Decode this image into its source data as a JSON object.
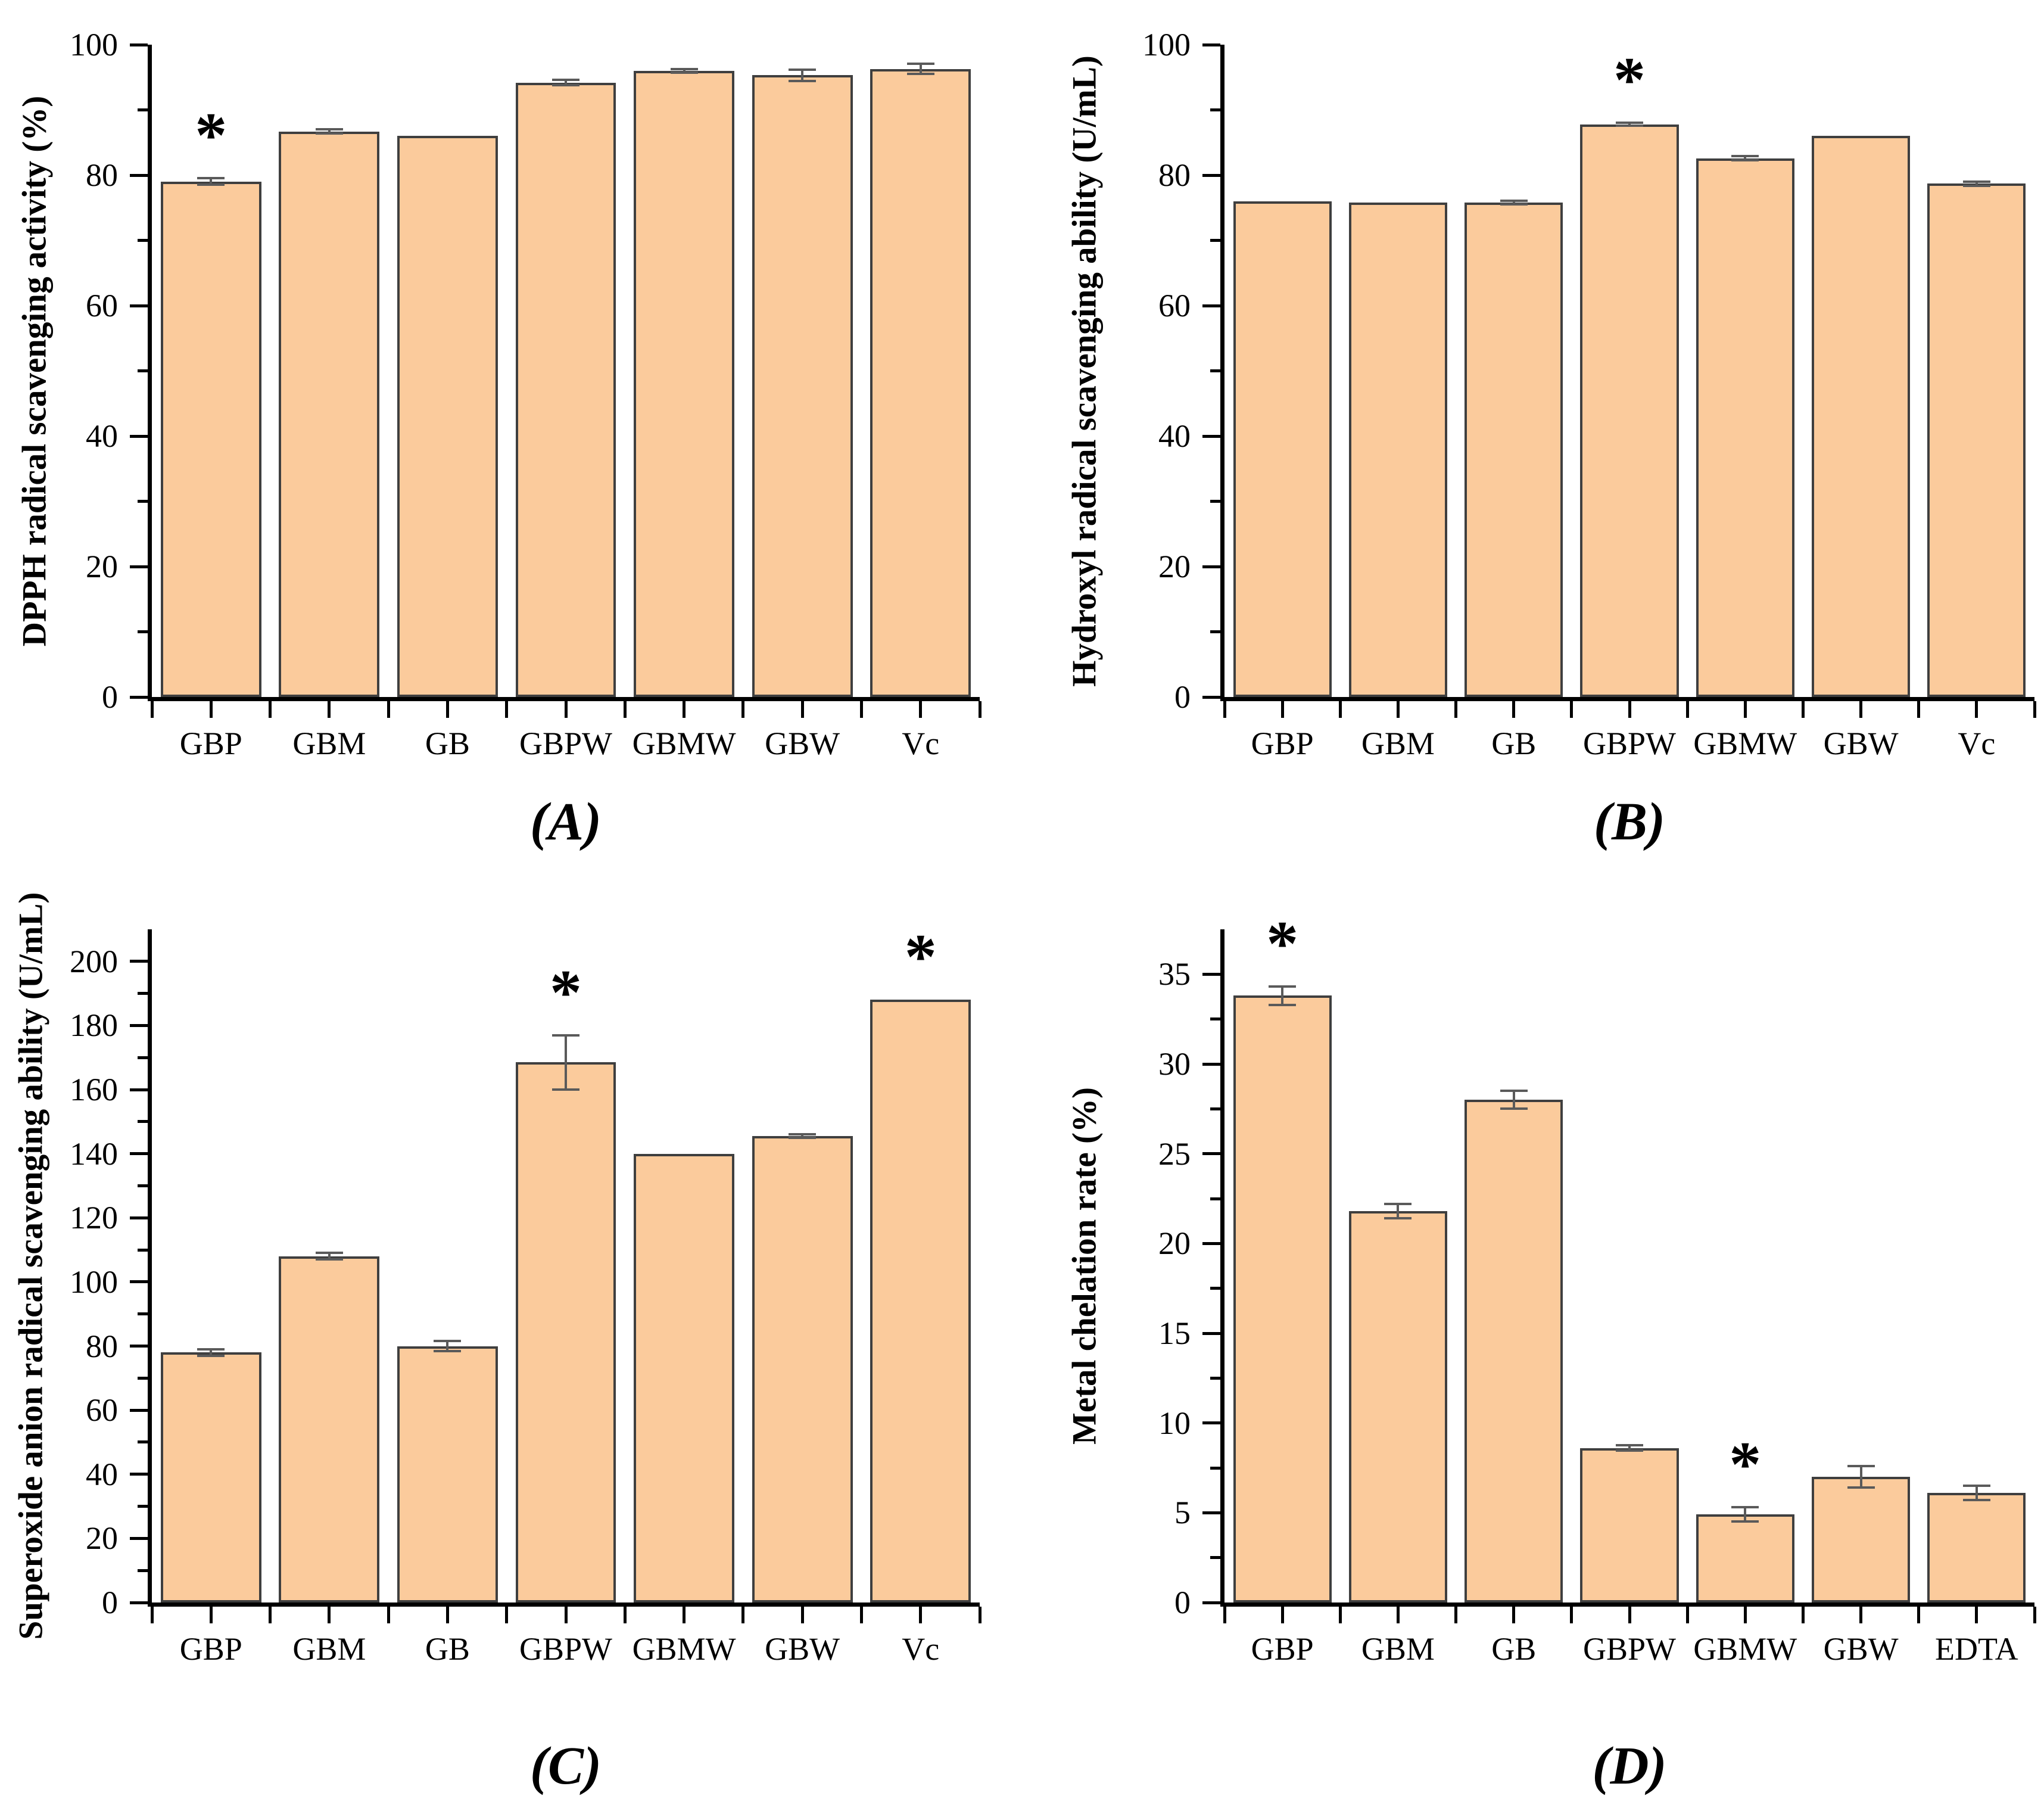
{
  "figure": {
    "description": "Four-panel bar chart figure of antioxidant activities",
    "background": "#FFFFFF"
  },
  "style": {
    "bar_fill": "#FBCB9C",
    "bar_border": "#3F3F3F",
    "error_color": "#5A5A5A",
    "axis_color": "#000000",
    "text_color": "#000000",
    "sig_marker": "*"
  },
  "chart_data": [
    {
      "panel_id": "a",
      "panel_label": "(A)",
      "type": "bar",
      "ylabel": "DPPH radical scavenging activity (%)",
      "xlabel": "",
      "categories": [
        "GBP",
        "GBM",
        "GB",
        "GBPW",
        "GBMW",
        "GBW",
        "Vc"
      ],
      "values": [
        79,
        86.7,
        86,
        94.2,
        96,
        95.3,
        96.3
      ],
      "errors": [
        0.5,
        0.3,
        0,
        0.4,
        0.3,
        0.9,
        0.8
      ],
      "significant": [
        true,
        false,
        false,
        false,
        false,
        false,
        false
      ],
      "ylim": [
        0,
        100
      ],
      "yticks": [
        0,
        20,
        40,
        60,
        80,
        100
      ],
      "yminor_step": 10,
      "grid": false,
      "legend": null
    },
    {
      "panel_id": "b",
      "panel_label": "(B)",
      "type": "bar",
      "ylabel": "Hydroxyl radical scavenging ability (U/mL)",
      "xlabel": "",
      "categories": [
        "GBP",
        "GBM",
        "GB",
        "GBPW",
        "GBMW",
        "GBW",
        "Vc"
      ],
      "values": [
        76,
        75.8,
        75.8,
        87.8,
        82.6,
        86,
        78.7
      ],
      "errors": [
        0,
        0,
        0.3,
        0.2,
        0.3,
        0,
        0.3
      ],
      "significant": [
        false,
        false,
        false,
        true,
        false,
        false,
        false
      ],
      "ylim": [
        0,
        100
      ],
      "yticks": [
        0,
        20,
        40,
        60,
        80,
        100
      ],
      "yminor_step": 10,
      "grid": false,
      "legend": null
    },
    {
      "panel_id": "c",
      "panel_label": "(C)",
      "type": "bar",
      "ylabel": "Superoxide anion radical scavenging ability (U/mL)",
      "xlabel": "",
      "categories": [
        "GBP",
        "GBM",
        "GB",
        "GBPW",
        "GBMW",
        "GBW",
        "Vc"
      ],
      "values": [
        78,
        108,
        80,
        168.5,
        140,
        145.5,
        188
      ],
      "errors": [
        1,
        1,
        1.5,
        8.5,
        0,
        0.5,
        0
      ],
      "significant": [
        false,
        false,
        false,
        true,
        false,
        false,
        true
      ],
      "ylim": [
        0,
        210
      ],
      "yticks": [
        0,
        20,
        40,
        60,
        80,
        100,
        120,
        140,
        160,
        180,
        200
      ],
      "yminor_step": 10,
      "grid": false,
      "legend": null
    },
    {
      "panel_id": "d",
      "panel_label": "(D)",
      "type": "bar",
      "ylabel": "Metal chelation rate (%)",
      "xlabel": "",
      "categories": [
        "GBP",
        "GBM",
        "GB",
        "GBPW",
        "GBMW",
        "GBW",
        "EDTA"
      ],
      "values": [
        33.8,
        21.8,
        28,
        8.6,
        4.9,
        7,
        6.1
      ],
      "errors": [
        0.5,
        0.4,
        0.5,
        0.15,
        0.4,
        0.6,
        0.4
      ],
      "significant": [
        true,
        false,
        false,
        false,
        true,
        false,
        false
      ],
      "ylim": [
        0,
        37.5
      ],
      "yticks": [
        0,
        5,
        10,
        15,
        20,
        25,
        30,
        35
      ],
      "yminor_step": 2.5,
      "grid": false,
      "legend": null
    }
  ]
}
